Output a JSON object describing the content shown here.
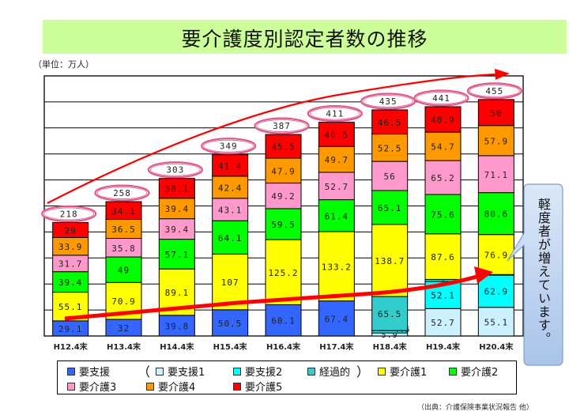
{
  "title": "要介護度別認定者数の推移",
  "unit_label": "（単位：万人）",
  "source": "（出典：介護保険事業状況報告 他）",
  "callout": "軽度者が増えています。",
  "legend": {
    "items": [
      {
        "key": "support",
        "label": "要支援"
      },
      {
        "key": "support1",
        "label": "要支援1"
      },
      {
        "key": "support2",
        "label": "要支援2"
      },
      {
        "key": "transitional",
        "label": "経過的"
      },
      {
        "key": "care1",
        "label": "要介護1"
      },
      {
        "key": "care2",
        "label": "要介護2"
      },
      {
        "key": "care3",
        "label": "要介護3"
      },
      {
        "key": "care4",
        "label": "要介護4"
      },
      {
        "key": "care5",
        "label": "要介護5"
      }
    ],
    "open_paren": "（",
    "close_paren": "）"
  },
  "colors": {
    "support": "#3366ff",
    "support1": "#ccf2ff",
    "support2": "#00ffff",
    "transitional": "#33cccc",
    "care1": "#ffff00",
    "care2": "#00ff00",
    "care3": "#ff99cc",
    "care4": "#ff9900",
    "care5": "#ff0000",
    "title_bg": "#ccff99",
    "arrow": "#ff0000",
    "ellipse": "#e0558a",
    "callout_fill": "#c6dcf5"
  },
  "chart_data": {
    "type": "bar",
    "stacked": true,
    "title": "要介護度別認定者数の推移",
    "ylabel": "（単位：万人）",
    "ylim": [
      0,
      500
    ],
    "grid": true,
    "grid_step": 50,
    "legend_position": "bottom",
    "categories": [
      "H12.4末",
      "H13.4末",
      "H14.4末",
      "H15.4末",
      "H16.4末",
      "H17.4末",
      "H18.4末",
      "H19.4末",
      "H20.4末"
    ],
    "totals": [
      "218",
      "258",
      "303",
      "349",
      "387",
      "411",
      "435",
      "441",
      "455"
    ],
    "series": [
      {
        "name": "要支援",
        "key": "support",
        "values": [
          29.1,
          32,
          39.8,
          50.5,
          60.1,
          67.4,
          null,
          null,
          null
        ],
        "labels": [
          "29.1",
          "32",
          "39.8",
          "50.5",
          "60.1",
          "67.4",
          "",
          "",
          ""
        ]
      },
      {
        "name": "要支援1",
        "key": "support1",
        "values": [
          null,
          null,
          null,
          null,
          null,
          null,
          5.9,
          52.7,
          55.1
        ],
        "labels": [
          "",
          "",
          "",
          "",
          "",
          "",
          "5.9",
          "52.7",
          "55.1"
        ]
      },
      {
        "name": "要支援2",
        "key": "support2",
        "values": [
          null,
          null,
          null,
          null,
          null,
          null,
          4.5,
          52.1,
          62.9
        ],
        "labels": [
          "",
          "",
          "",
          "",
          "",
          "",
          "4.5",
          "52.1",
          "62.9"
        ]
      },
      {
        "name": "経過的",
        "key": "transitional",
        "values": [
          null,
          null,
          null,
          null,
          null,
          null,
          65.5,
          4,
          0.1
        ],
        "labels": [
          "",
          "",
          "",
          "",
          "",
          "",
          "65.5",
          "4",
          ".1"
        ]
      },
      {
        "name": "要介護1",
        "key": "care1",
        "values": [
          55.1,
          70.9,
          89.1,
          107,
          125.2,
          133.2,
          138.7,
          87.6,
          76.9
        ],
        "labels": [
          "55.1",
          "70.9",
          "89.1",
          "107",
          "125.2",
          "133.2",
          "138.7",
          "87.6",
          "76.9"
        ]
      },
      {
        "name": "要介護2",
        "key": "care2",
        "values": [
          39.4,
          49,
          57.1,
          64.1,
          59.5,
          61.4,
          65.1,
          75.6,
          80.6
        ],
        "labels": [
          "39.4",
          "49",
          "57.1",
          "64.1",
          "59.5",
          "61.4",
          "65.1",
          "75.6",
          "80.6"
        ]
      },
      {
        "name": "要介護3",
        "key": "care3",
        "values": [
          31.7,
          35.8,
          39.4,
          43.1,
          49.2,
          52.7,
          56,
          65.2,
          71.1
        ],
        "labels": [
          "31.7",
          "35.8",
          "39.4",
          "43.1",
          "49.2",
          "52.7",
          "56",
          "65.2",
          "71.1"
        ]
      },
      {
        "name": "要介護4",
        "key": "care4",
        "values": [
          33.9,
          36.5,
          39.4,
          42.4,
          47.9,
          49.7,
          52.5,
          54.7,
          57.9
        ],
        "labels": [
          "33.9",
          "36.5",
          "39.4",
          "42.4",
          "47.9",
          "49.7",
          "52.5",
          "54.7",
          "57.9"
        ]
      },
      {
        "name": "要介護5",
        "key": "care5",
        "values": [
          29,
          34.1,
          38.1,
          41.4,
          45.5,
          46.5,
          46.5,
          48.9,
          50
        ],
        "labels": [
          "29",
          "34.1",
          "38.1",
          "41.4",
          "45.5",
          "46.5",
          "46.5",
          "48.9",
          "50"
        ]
      }
    ]
  }
}
